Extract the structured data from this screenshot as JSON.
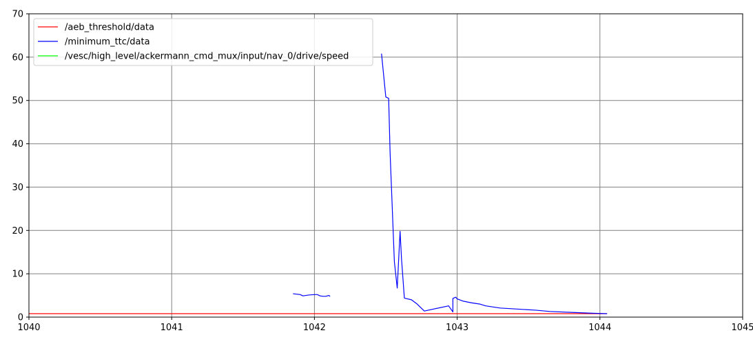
{
  "chart_data": {
    "type": "line",
    "xlim": [
      1040,
      1045
    ],
    "ylim": [
      0,
      70
    ],
    "x_ticks": [
      1040,
      1041,
      1042,
      1043,
      1044,
      1045
    ],
    "y_ticks": [
      0,
      10,
      20,
      30,
      40,
      50,
      60,
      70
    ],
    "grid": true,
    "legend_position": "top-left",
    "series": [
      {
        "name": "/aeb_threshold/data",
        "color": "#ff0000",
        "x": [
          1040.0,
          1044.05
        ],
        "y": [
          0.8,
          0.8
        ]
      },
      {
        "name": "/minimum_ttc/data",
        "color": "#0000ff",
        "segments": [
          {
            "x": [
              1041.85,
              1041.9,
              1041.92,
              1041.96,
              1042.0,
              1042.02,
              1042.04,
              1042.06,
              1042.08,
              1042.1,
              1042.11
            ],
            "y": [
              5.4,
              5.2,
              4.9,
              5.1,
              5.2,
              5.2,
              4.9,
              4.8,
              4.8,
              5.0,
              4.8
            ]
          },
          {
            "x": [
              1042.47,
              1042.5,
              1042.52,
              1042.53,
              1042.56,
              1042.58,
              1042.6,
              1042.61,
              1042.63,
              1042.64,
              1042.68,
              1042.72,
              1042.77,
              1042.94,
              1042.97,
              1042.97,
              1042.99,
              1043.0,
              1043.04,
              1043.1,
              1043.16,
              1043.2,
              1043.3,
              1043.4,
              1043.55,
              1043.65,
              1043.8,
              1043.95,
              1044.05
            ],
            "y": [
              60.8,
              50.8,
              50.5,
              38.0,
              12.8,
              6.7,
              19.8,
              13.5,
              4.4,
              4.3,
              4.0,
              3.0,
              1.4,
              2.6,
              1.2,
              4.3,
              4.6,
              4.2,
              3.7,
              3.3,
              3.0,
              2.6,
              2.1,
              1.9,
              1.6,
              1.3,
              1.1,
              0.9,
              0.8
            ]
          }
        ]
      },
      {
        "name": "/vesc/high_level/ackermann_cmd_mux/input/nav_0/drive/speed",
        "color": "#00ff00",
        "x": [],
        "y": []
      }
    ]
  }
}
